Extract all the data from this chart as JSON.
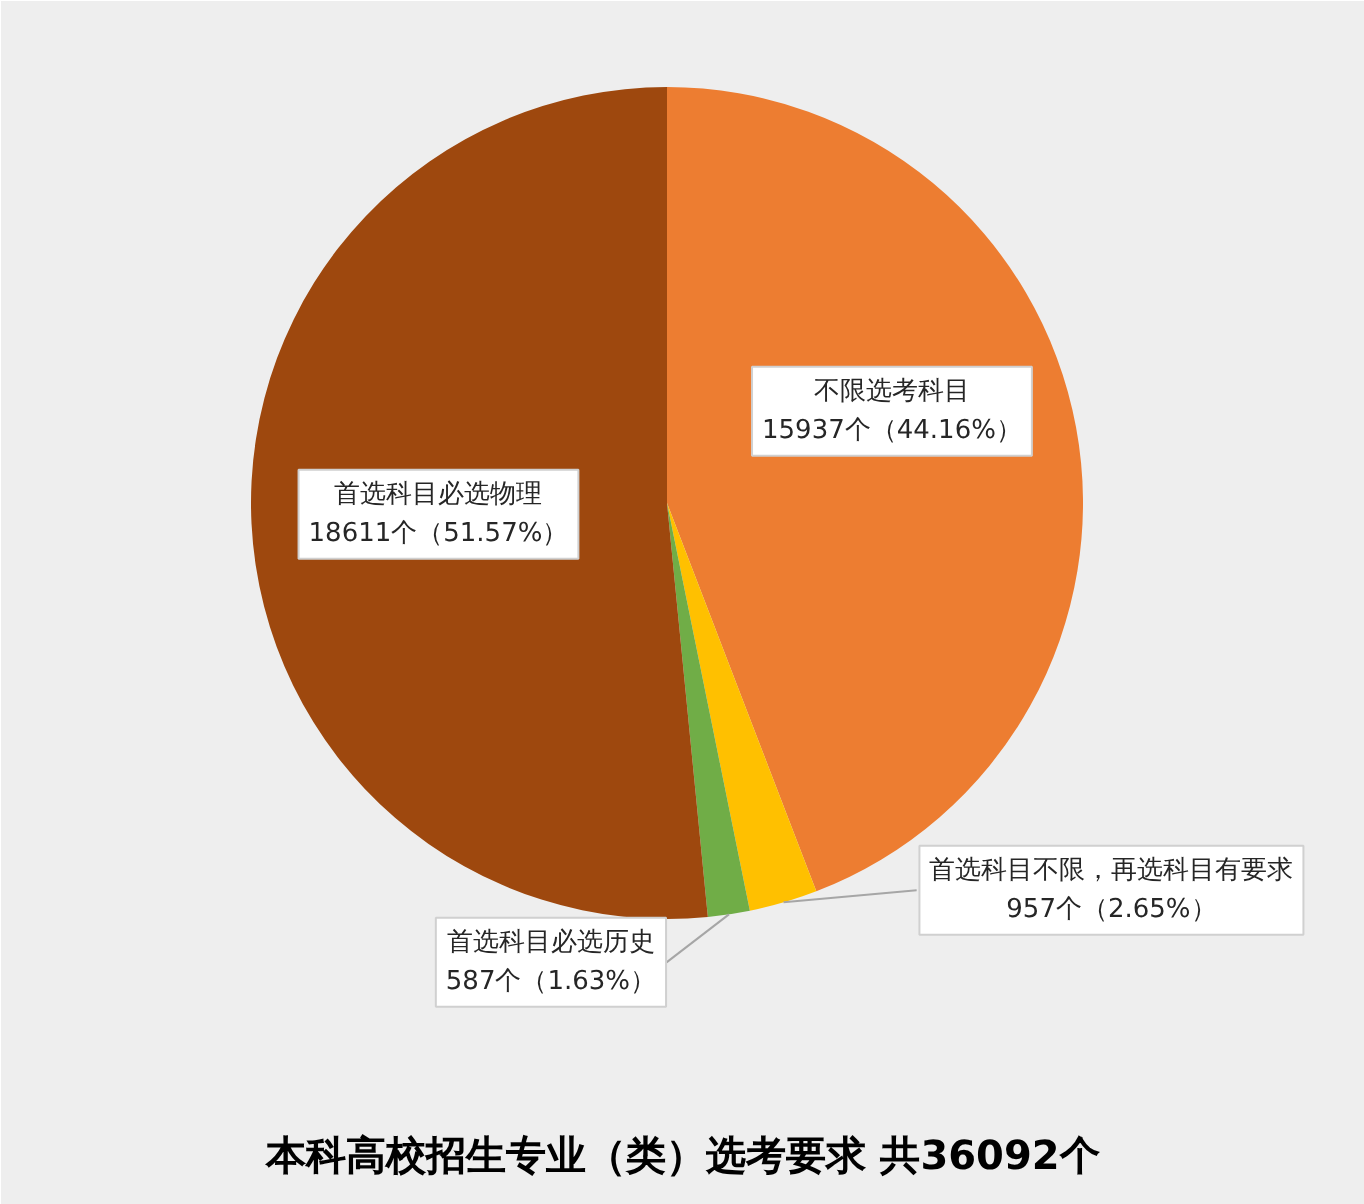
{
  "chart_data": {
    "type": "pie",
    "title": "本科高校招生专业（类）选考要求 共36092个",
    "categories": [
      "不限选考科目",
      "首选科目不限，再选科目有要求",
      "首选科目必选历史",
      "首选科目必选物理"
    ],
    "values": [
      15937,
      957,
      587,
      18611
    ],
    "colors": [
      "#ed7d31",
      "#ffc000",
      "#70ad47",
      "#9e480e"
    ],
    "value_labels": [
      "15937个（44.16%）",
      "957个（2.65%）",
      "587个（1.63%）",
      "18611个（51.57%）"
    ]
  }
}
